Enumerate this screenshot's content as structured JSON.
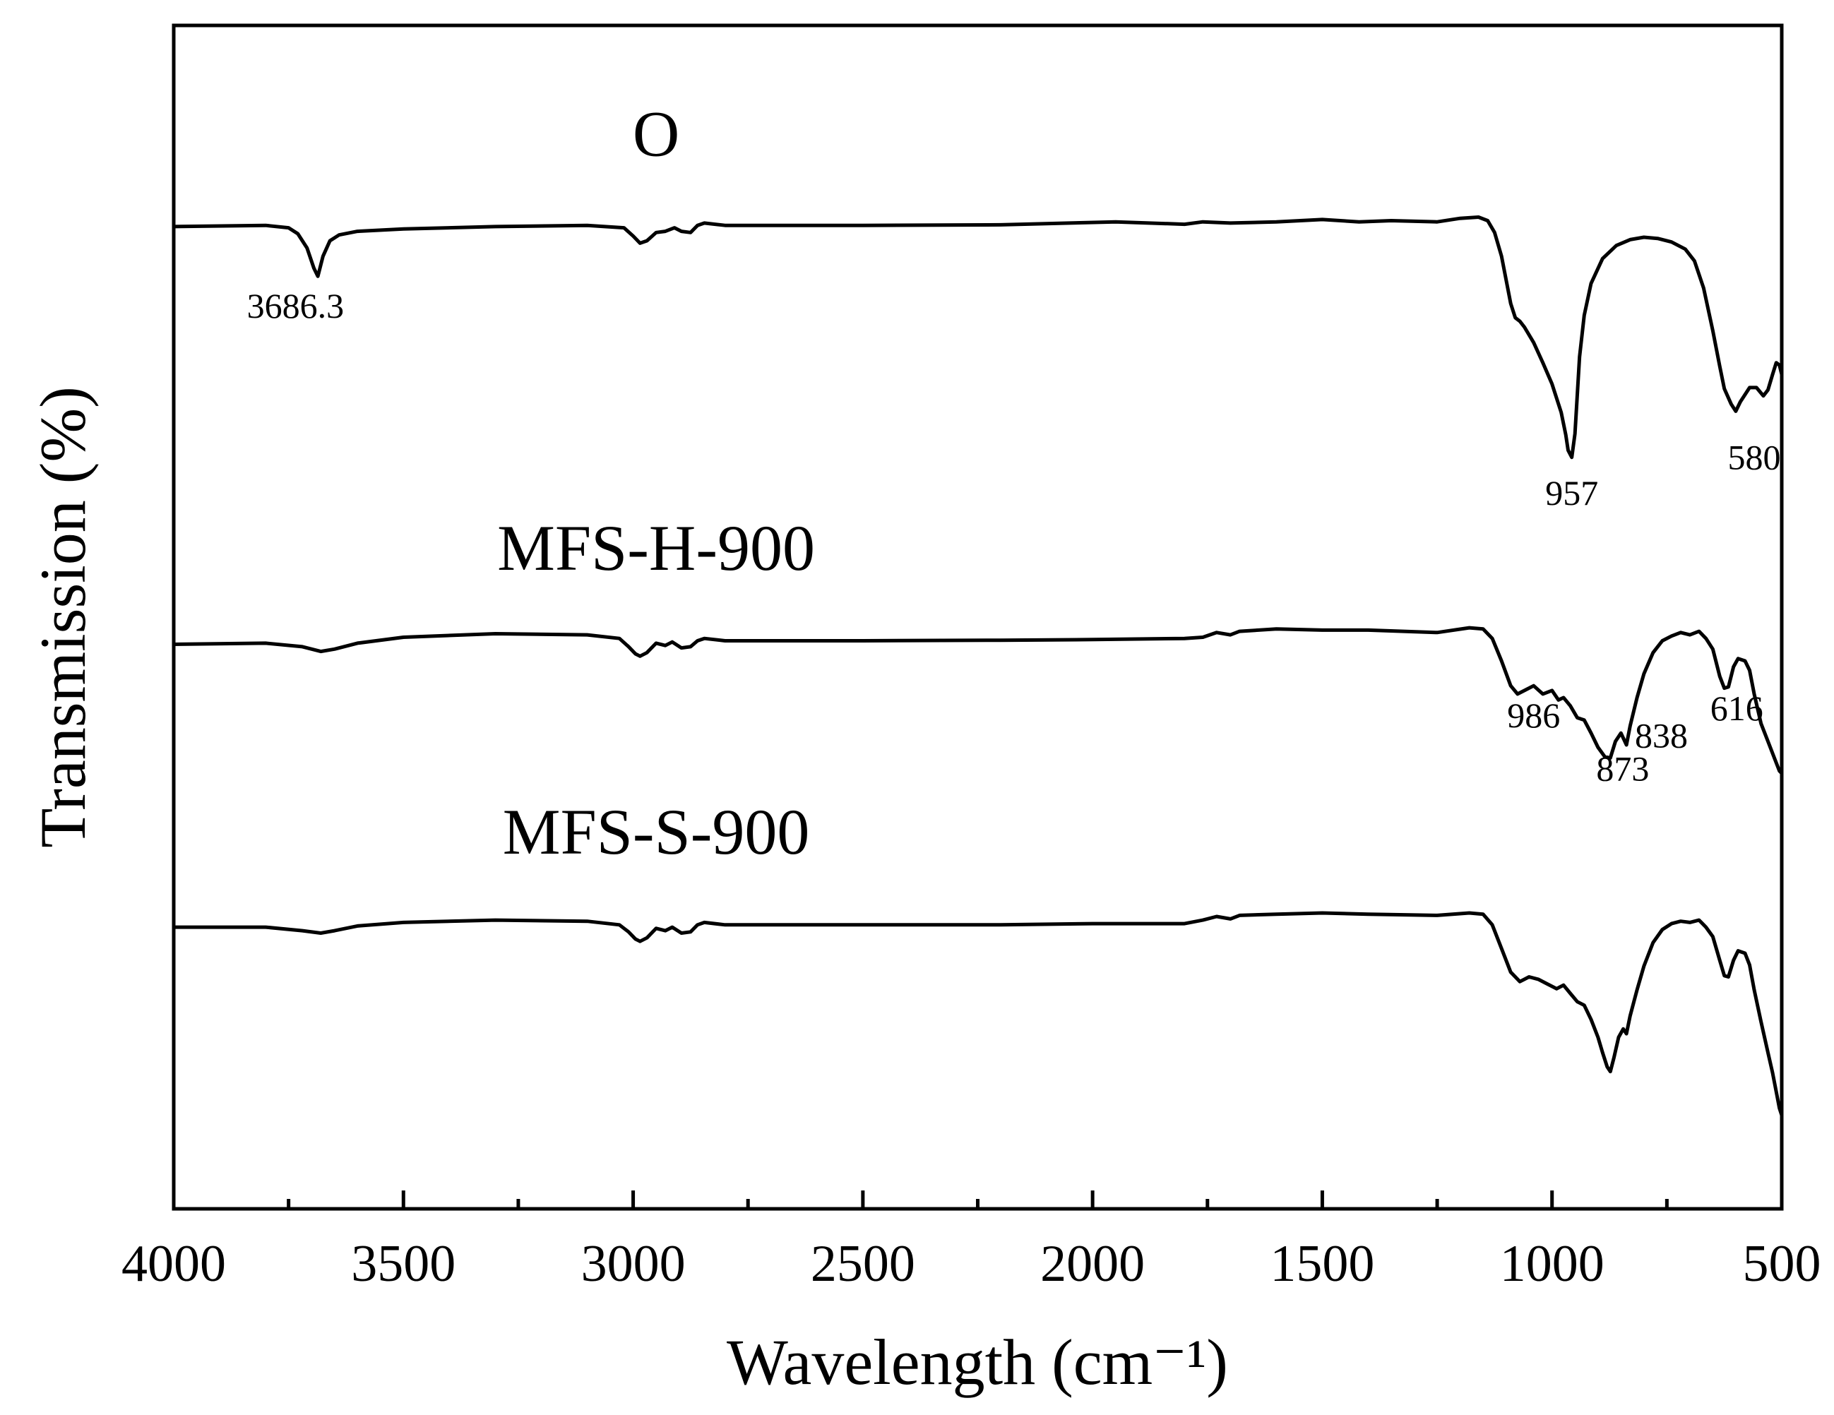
{
  "chart_data": {
    "type": "line",
    "title": "",
    "xlabel": "Wavelength (cm⁻¹)",
    "ylabel": "Transmission (%)",
    "xlim": [
      4000,
      500
    ],
    "x_reversed": true,
    "x_ticks": [
      4000,
      3500,
      3000,
      2500,
      2000,
      1500,
      1000,
      500
    ],
    "x_tick_labels": [
      "4000",
      "3500",
      "3000",
      "2500",
      "2000",
      "1500",
      "1000",
      "500"
    ],
    "x_minor_ticks": [
      3750,
      3250,
      2750,
      2250,
      1750,
      1250,
      750
    ],
    "ylim": [
      0,
      100
    ],
    "y_ticks": [],
    "grid": false,
    "legend": "none",
    "series": [
      {
        "name": "O",
        "label_x": 2950,
        "label_y": 89,
        "points": [
          [
            4000,
            83
          ],
          [
            3800,
            83.1
          ],
          [
            3750,
            82.9
          ],
          [
            3730,
            82.4
          ],
          [
            3710,
            81.2
          ],
          [
            3695,
            79.5
          ],
          [
            3686.3,
            78.8
          ],
          [
            3675,
            80.5
          ],
          [
            3660,
            81.8
          ],
          [
            3640,
            82.3
          ],
          [
            3600,
            82.6
          ],
          [
            3500,
            82.8
          ],
          [
            3300,
            83
          ],
          [
            3100,
            83.1
          ],
          [
            3020,
            82.9
          ],
          [
            3000,
            82.2
          ],
          [
            2985,
            81.6
          ],
          [
            2970,
            81.8
          ],
          [
            2950,
            82.5
          ],
          [
            2930,
            82.6
          ],
          [
            2910,
            82.9
          ],
          [
            2895,
            82.6
          ],
          [
            2875,
            82.5
          ],
          [
            2860,
            83.1
          ],
          [
            2845,
            83.3
          ],
          [
            2800,
            83.1
          ],
          [
            2500,
            83.1
          ],
          [
            2200,
            83.15
          ],
          [
            2050,
            83.3
          ],
          [
            1950,
            83.4
          ],
          [
            1800,
            83.2
          ],
          [
            1760,
            83.4
          ],
          [
            1700,
            83.3
          ],
          [
            1600,
            83.4
          ],
          [
            1500,
            83.6
          ],
          [
            1420,
            83.4
          ],
          [
            1350,
            83.5
          ],
          [
            1250,
            83.4
          ],
          [
            1200,
            83.7
          ],
          [
            1160,
            83.8
          ],
          [
            1140,
            83.5
          ],
          [
            1125,
            82.5
          ],
          [
            1110,
            80.5
          ],
          [
            1090,
            76.5
          ],
          [
            1080,
            75.3
          ],
          [
            1070,
            75
          ],
          [
            1060,
            74.5
          ],
          [
            1040,
            73.2
          ],
          [
            1020,
            71.5
          ],
          [
            1000,
            69.7
          ],
          [
            980,
            67.3
          ],
          [
            970,
            65.4
          ],
          [
            965,
            64.1
          ],
          [
            957,
            63.5
          ],
          [
            950,
            65.5
          ],
          [
            940,
            72
          ],
          [
            930,
            75.5
          ],
          [
            915,
            78.2
          ],
          [
            890,
            80.3
          ],
          [
            860,
            81.4
          ],
          [
            830,
            81.9
          ],
          [
            800,
            82.1
          ],
          [
            770,
            82
          ],
          [
            740,
            81.7
          ],
          [
            710,
            81.1
          ],
          [
            690,
            80.1
          ],
          [
            670,
            77.8
          ],
          [
            650,
            74.2
          ],
          [
            635,
            71.2
          ],
          [
            625,
            69.3
          ],
          [
            610,
            68
          ],
          [
            600,
            67.4
          ],
          [
            590,
            68.2
          ],
          [
            580,
            68.8
          ],
          [
            570,
            69.4
          ],
          [
            555,
            69.4
          ],
          [
            540,
            68.7
          ],
          [
            530,
            69.2
          ],
          [
            520,
            70.5
          ],
          [
            512,
            71.5
          ],
          [
            505,
            71.3
          ],
          [
            500,
            70.5
          ]
        ],
        "peaks": [
          {
            "label": "3686.3",
            "x": 3735,
            "y": 75.3
          },
          {
            "label": "957",
            "x": 957,
            "y": 59.5
          },
          {
            "label": "580",
            "x": 560,
            "y": 62.5
          }
        ]
      },
      {
        "name": "MFS-H-900",
        "label_x": 2950,
        "label_y": 54,
        "points": [
          [
            4000,
            47.7
          ],
          [
            3800,
            47.8
          ],
          [
            3720,
            47.5
          ],
          [
            3680,
            47.1
          ],
          [
            3650,
            47.3
          ],
          [
            3600,
            47.8
          ],
          [
            3500,
            48.3
          ],
          [
            3300,
            48.6
          ],
          [
            3100,
            48.5
          ],
          [
            3030,
            48.2
          ],
          [
            3010,
            47.5
          ],
          [
            2995,
            46.9
          ],
          [
            2985,
            46.7
          ],
          [
            2970,
            47
          ],
          [
            2950,
            47.8
          ],
          [
            2930,
            47.6
          ],
          [
            2915,
            47.9
          ],
          [
            2895,
            47.4
          ],
          [
            2875,
            47.5
          ],
          [
            2860,
            48
          ],
          [
            2845,
            48.2
          ],
          [
            2800,
            48.0
          ],
          [
            2500,
            48
          ],
          [
            2200,
            48.05
          ],
          [
            2000,
            48.1
          ],
          [
            1800,
            48.2
          ],
          [
            1760,
            48.3
          ],
          [
            1730,
            48.7
          ],
          [
            1700,
            48.5
          ],
          [
            1680,
            48.8
          ],
          [
            1600,
            49.0
          ],
          [
            1500,
            48.9
          ],
          [
            1400,
            48.9
          ],
          [
            1250,
            48.7
          ],
          [
            1180,
            49.1
          ],
          [
            1150,
            49
          ],
          [
            1130,
            48.2
          ],
          [
            1110,
            46.3
          ],
          [
            1090,
            44.2
          ],
          [
            1075,
            43.5
          ],
          [
            1060,
            43.8
          ],
          [
            1040,
            44.2
          ],
          [
            1020,
            43.5
          ],
          [
            1000,
            43.8
          ],
          [
            986,
            43
          ],
          [
            975,
            43.2
          ],
          [
            960,
            42.5
          ],
          [
            945,
            41.5
          ],
          [
            930,
            41.3
          ],
          [
            915,
            40.2
          ],
          [
            900,
            39
          ],
          [
            885,
            38.2
          ],
          [
            873,
            38.1
          ],
          [
            862,
            39.5
          ],
          [
            850,
            40.2
          ],
          [
            838,
            39.2
          ],
          [
            830,
            40.8
          ],
          [
            815,
            43.2
          ],
          [
            800,
            45.2
          ],
          [
            780,
            47
          ],
          [
            760,
            48
          ],
          [
            740,
            48.4
          ],
          [
            720,
            48.7
          ],
          [
            700,
            48.5
          ],
          [
            680,
            48.8
          ],
          [
            665,
            48.2
          ],
          [
            650,
            47.3
          ],
          [
            635,
            45
          ],
          [
            625,
            44
          ],
          [
            616,
            44.1
          ],
          [
            605,
            45.8
          ],
          [
            595,
            46.5
          ],
          [
            580,
            46.3
          ],
          [
            570,
            45.5
          ],
          [
            560,
            43.5
          ],
          [
            545,
            41
          ],
          [
            530,
            39.5
          ],
          [
            515,
            38
          ],
          [
            505,
            37
          ],
          [
            500,
            36.8
          ]
        ],
        "peaks": [
          {
            "label": "986",
            "x": 1040,
            "y": 40.7
          },
          {
            "label": "873",
            "x": 846,
            "y": 36.2
          },
          {
            "label": "838",
            "x": 762,
            "y": 39.0
          },
          {
            "label": "616",
            "x": 598,
            "y": 41.3
          }
        ]
      },
      {
        "name": "MFS-S-900",
        "label_x": 2950,
        "label_y": 30,
        "points": [
          [
            4000,
            23.8
          ],
          [
            3800,
            23.8
          ],
          [
            3720,
            23.5
          ],
          [
            3680,
            23.3
          ],
          [
            3650,
            23.5
          ],
          [
            3600,
            23.9
          ],
          [
            3500,
            24.2
          ],
          [
            3300,
            24.4
          ],
          [
            3100,
            24.3
          ],
          [
            3030,
            24
          ],
          [
            3010,
            23.4
          ],
          [
            2995,
            22.8
          ],
          [
            2985,
            22.6
          ],
          [
            2970,
            22.9
          ],
          [
            2950,
            23.7
          ],
          [
            2930,
            23.5
          ],
          [
            2915,
            23.8
          ],
          [
            2895,
            23.3
          ],
          [
            2875,
            23.4
          ],
          [
            2860,
            24
          ],
          [
            2845,
            24.2
          ],
          [
            2800,
            24
          ],
          [
            2500,
            24.0
          ],
          [
            2200,
            24
          ],
          [
            2000,
            24.1
          ],
          [
            1800,
            24.1
          ],
          [
            1760,
            24.4
          ],
          [
            1730,
            24.7
          ],
          [
            1700,
            24.5
          ],
          [
            1680,
            24.8
          ],
          [
            1600,
            24.9
          ],
          [
            1500,
            25
          ],
          [
            1400,
            24.9
          ],
          [
            1250,
            24.8
          ],
          [
            1180,
            25
          ],
          [
            1150,
            24.9
          ],
          [
            1130,
            24
          ],
          [
            1110,
            22
          ],
          [
            1090,
            20
          ],
          [
            1070,
            19.2
          ],
          [
            1050,
            19.6
          ],
          [
            1030,
            19.4
          ],
          [
            1010,
            19
          ],
          [
            990,
            18.6
          ],
          [
            975,
            18.9
          ],
          [
            960,
            18.2
          ],
          [
            945,
            17.5
          ],
          [
            930,
            17.2
          ],
          [
            915,
            16
          ],
          [
            900,
            14.5
          ],
          [
            890,
            13.2
          ],
          [
            880,
            12
          ],
          [
            873,
            11.6
          ],
          [
            865,
            12.8
          ],
          [
            855,
            14.5
          ],
          [
            845,
            15.2
          ],
          [
            838,
            14.8
          ],
          [
            830,
            16.3
          ],
          [
            815,
            18.5
          ],
          [
            800,
            20.5
          ],
          [
            780,
            22.5
          ],
          [
            760,
            23.6
          ],
          [
            740,
            24.1
          ],
          [
            720,
            24.3
          ],
          [
            700,
            24.2
          ],
          [
            680,
            24.4
          ],
          [
            665,
            23.8
          ],
          [
            650,
            23
          ],
          [
            635,
            21
          ],
          [
            625,
            19.7
          ],
          [
            616,
            19.6
          ],
          [
            605,
            21
          ],
          [
            595,
            21.8
          ],
          [
            580,
            21.6
          ],
          [
            570,
            20.6
          ],
          [
            560,
            18.5
          ],
          [
            545,
            15.8
          ],
          [
            530,
            13.2
          ],
          [
            520,
            11.5
          ],
          [
            510,
            9.5
          ],
          [
            505,
            8.5
          ],
          [
            500,
            7.9
          ]
        ],
        "peaks": []
      }
    ]
  }
}
